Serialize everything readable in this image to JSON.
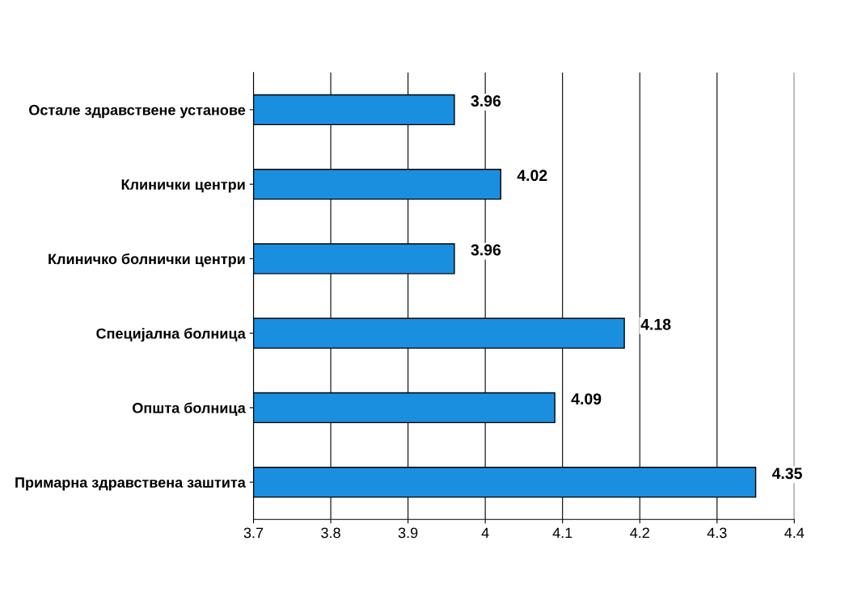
{
  "chart_data": {
    "type": "bar",
    "orientation": "horizontal",
    "categories": [
      "Остале здравствене установе",
      "Клинички центри",
      "Клиничко болнички центри",
      "Специјална болница",
      "Општа болница",
      "Примарна здравствена заштита"
    ],
    "values": [
      3.96,
      4.02,
      3.96,
      4.18,
      4.09,
      4.35
    ],
    "color": "#1a8fe0",
    "xlim": [
      3.7,
      4.4
    ],
    "xticks": [
      3.7,
      3.8,
      3.9,
      {
        "value": 4,
        "label": "4"
      },
      4.1,
      4.2,
      4.3,
      4.4
    ],
    "grid": "x",
    "data_labels": true
  }
}
